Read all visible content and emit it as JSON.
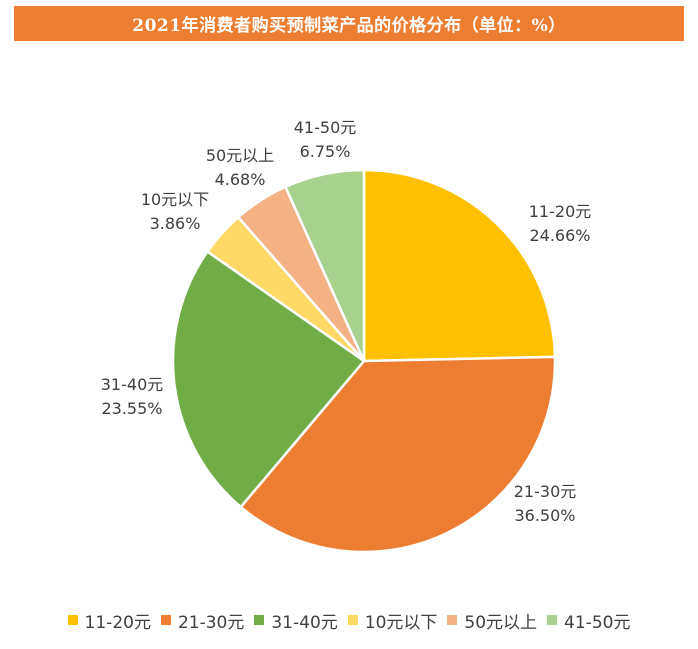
{
  "title": "2021年消费者购买预制菜产品的价格分布（单位：%）",
  "colors": {
    "title_bg": "#ED7D31",
    "title_text": "#FFFFFF",
    "label_text": "#404040"
  },
  "chart_data": {
    "type": "pie",
    "title": "2021年消费者购买预制菜产品的价格分布（单位：%）",
    "unit": "%",
    "start_angle_deg": 0,
    "direction": "clockwise",
    "legend_position": "bottom",
    "slices": [
      {
        "label": "11-20元",
        "value": 24.66,
        "display": "24.66%",
        "color": "#FFC000"
      },
      {
        "label": "21-30元",
        "value": 36.5,
        "display": "36.50%",
        "color": "#ED7D31"
      },
      {
        "label": "31-40元",
        "value": 23.55,
        "display": "23.55%",
        "color": "#70AD47"
      },
      {
        "label": "10元以下",
        "value": 3.86,
        "display": "3.86%",
        "color": "#FFD966"
      },
      {
        "label": "50元以上",
        "value": 4.68,
        "display": "4.68%",
        "color": "#F4B183"
      },
      {
        "label": "41-50元",
        "value": 6.75,
        "display": "6.75%",
        "color": "#A9D18E"
      }
    ]
  }
}
